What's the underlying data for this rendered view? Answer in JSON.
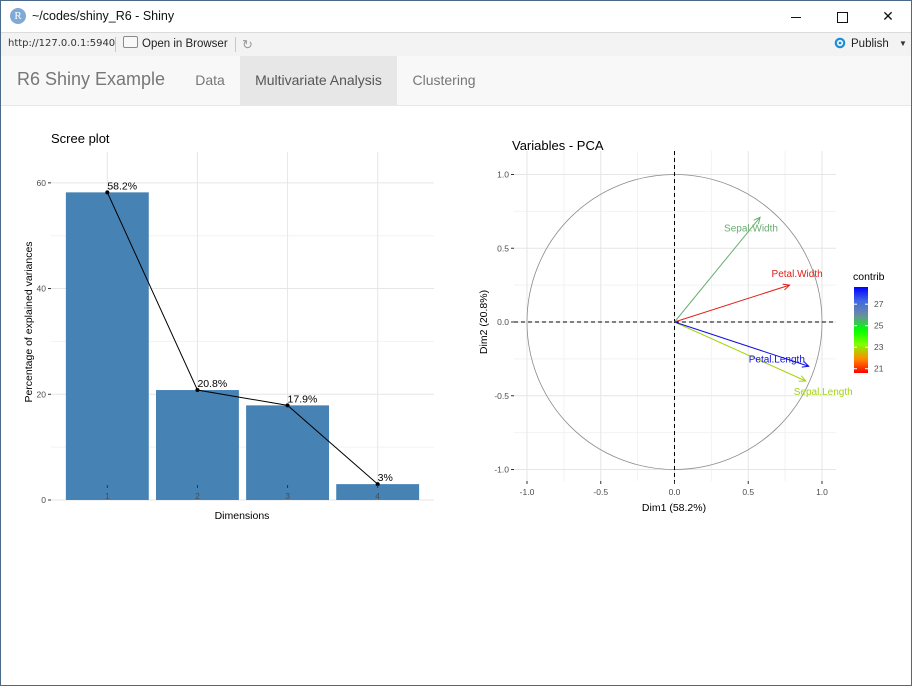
{
  "window": {
    "title": "~/codes/shiny_R6 - Shiny",
    "app_icon": "R"
  },
  "toolbar": {
    "url": "http://127.0.0.1:5940",
    "open_browser_label": "Open in Browser",
    "publish_label": "Publish"
  },
  "navbar": {
    "brand": "R6 Shiny Example",
    "tabs": [
      {
        "label": "Data",
        "active": false
      },
      {
        "label": "Multivariate Analysis",
        "active": true
      },
      {
        "label": "Clustering",
        "active": false
      }
    ]
  },
  "colors": {
    "bar": "#4682b4",
    "navbar_bg": "#f8f8f8",
    "active_tab_bg": "#e7e7e7"
  },
  "chart_data": [
    {
      "type": "bar",
      "title": "Scree plot",
      "xlabel": "Dimensions",
      "ylabel": "Percentage of explained variances",
      "categories": [
        "1",
        "2",
        "3",
        "4"
      ],
      "values": [
        58.2,
        20.8,
        17.9,
        3.0
      ],
      "value_labels": [
        "58.2%",
        "20.8%",
        "17.9%",
        "3%"
      ],
      "ylim": [
        0,
        60
      ],
      "yticks": [
        0,
        20,
        40,
        60
      ],
      "line_overlay": true,
      "grid": true
    },
    {
      "type": "scatter",
      "title": "Variables - PCA",
      "xlabel": "Dim1 (58.2%)",
      "ylabel": "Dim2 (20.8%)",
      "xlim": [
        -1.0,
        1.0
      ],
      "ylim": [
        -1.0,
        1.0
      ],
      "xticks": [
        -1.0,
        -0.5,
        0.0,
        0.5,
        1.0
      ],
      "yticks": [
        -1.0,
        -0.5,
        0.0,
        0.5,
        1.0
      ],
      "xtick_labels": [
        "-1.0",
        "-0.5",
        "0.0",
        "0.5",
        "1.0"
      ],
      "ytick_labels": [
        "-1.0",
        "-0.5",
        "0.0",
        "0.5",
        "1.0"
      ],
      "grid": true,
      "unit_circle": true,
      "variables": [
        {
          "name": "Sepal.Length",
          "x": 0.89,
          "y": -0.4,
          "contrib": 23,
          "color": "#a6d30f"
        },
        {
          "name": "Sepal.Width",
          "x": 0.58,
          "y": 0.71,
          "contrib": 25.5,
          "color": "#6aae72"
        },
        {
          "name": "Petal.Length",
          "x": 0.91,
          "y": -0.3,
          "contrib": 27.5,
          "color": "#1010e0"
        },
        {
          "name": "Petal.Width",
          "x": 0.78,
          "y": 0.25,
          "contrib": 21.5,
          "color": "#e0201a"
        }
      ],
      "legend": {
        "title": "contrib",
        "placement": "right",
        "ticks": [
          21,
          23,
          25,
          27
        ],
        "range": [
          20.6,
          28.6
        ],
        "gradient": [
          "#ff0000",
          "#ff8c00",
          "#7fff00",
          "#00ff00",
          "#6b8e9f",
          "#4169e1",
          "#0000ff"
        ]
      }
    }
  ]
}
